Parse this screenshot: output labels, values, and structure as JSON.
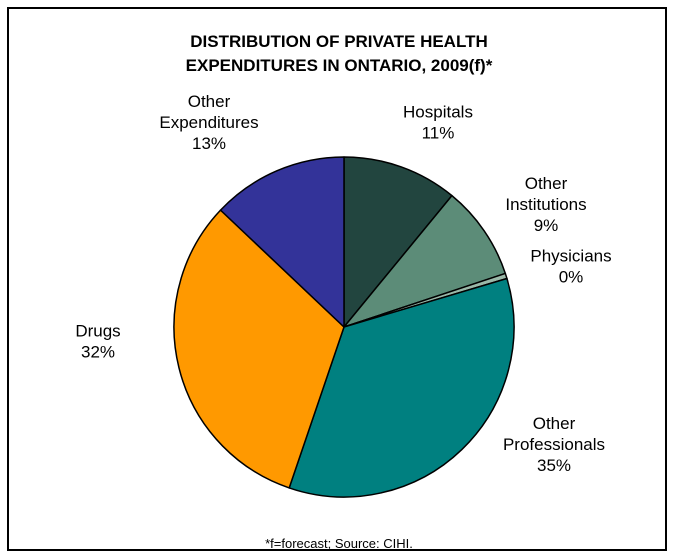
{
  "chart_data": {
    "type": "pie",
    "title_line1": "DISTRIBUTION OF PRIVATE HEALTH",
    "title_line2": "EXPENDITURES IN ONTARIO, 2009(f)*",
    "footnote": "*f=forecast; Source: CIHI.",
    "start_angle_deg": 0,
    "direction": "clockwise",
    "slices": [
      {
        "name_lines": [
          "Hospitals"
        ],
        "label": "11%",
        "value": 11,
        "color": "#22453f"
      },
      {
        "name_lines": [
          "Other",
          "Institutions"
        ],
        "label": "9%",
        "value": 9,
        "color": "#5c8c78"
      },
      {
        "name_lines": [
          "Physicians"
        ],
        "label": "0%",
        "value": 0.5,
        "color": "#9ab8a8"
      },
      {
        "name_lines": [
          "Other",
          "Professionals"
        ],
        "label": "35%",
        "value": 35,
        "color": "#008080"
      },
      {
        "name_lines": [
          "Drugs"
        ],
        "label": "32%",
        "value": 32,
        "color": "#ff9900"
      },
      {
        "name_lines": [
          "Other",
          "Expenditures"
        ],
        "label": "13%",
        "value": 13,
        "color": "#333399"
      }
    ]
  }
}
